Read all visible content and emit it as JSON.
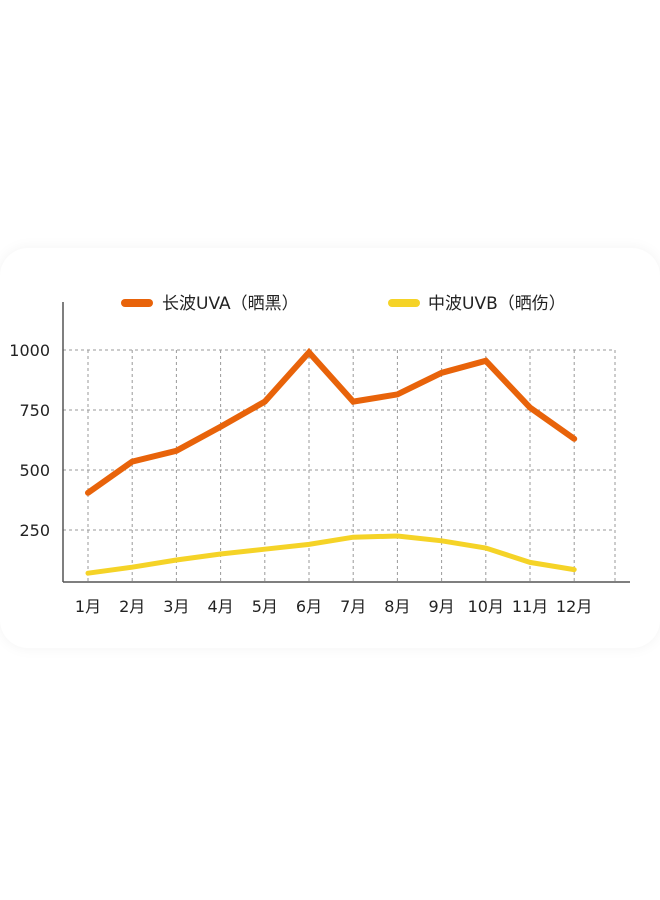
{
  "chart_data": {
    "type": "line",
    "categories": [
      "1月",
      "2月",
      "3月",
      "4月",
      "5月",
      "6月",
      "7月",
      "8月",
      "9月",
      "10月",
      "11月",
      "12月"
    ],
    "series": [
      {
        "name": "长波UVA（晒黑）",
        "color": "#E8630A",
        "values": [
          405,
          535,
          580,
          680,
          785,
          990,
          785,
          815,
          905,
          955,
          760,
          630
        ]
      },
      {
        "name": "中波UVB（晒伤）",
        "color": "#F5D327",
        "values": [
          70,
          95,
          125,
          150,
          170,
          190,
          220,
          225,
          205,
          175,
          115,
          85
        ]
      }
    ],
    "yticks": [
      250,
      500,
      750,
      1000
    ],
    "ylim": [
      0,
      1200
    ],
    "grid": true,
    "legend": "top",
    "title": "",
    "xlabel": "",
    "ylabel": ""
  }
}
